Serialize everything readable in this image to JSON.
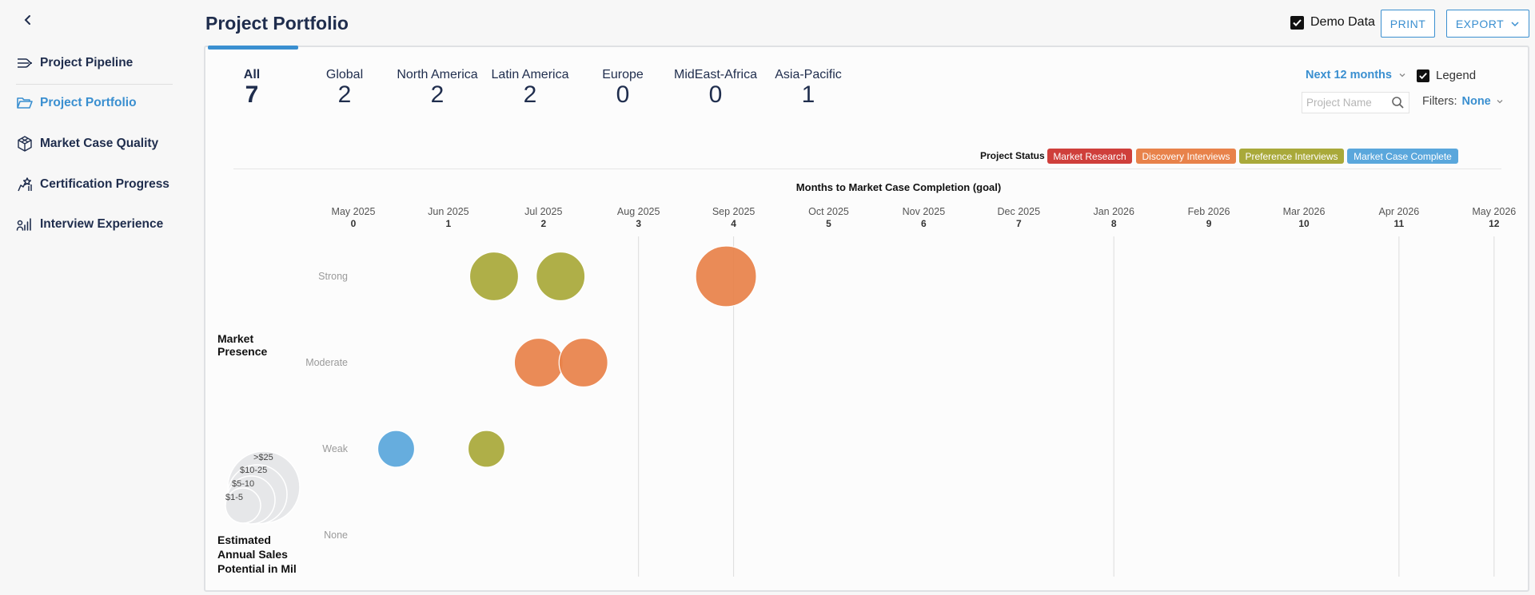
{
  "sidebar": {
    "back_icon": "chevron-left-icon",
    "items": [
      {
        "label": "Project Pipeline",
        "icon": "pipeline-icon",
        "active": false
      },
      {
        "label": "Project Portfolio",
        "icon": "folder-open-icon",
        "active": true
      },
      {
        "label": "Market Case Quality",
        "icon": "cube-icon",
        "active": false
      },
      {
        "label": "Certification Progress",
        "icon": "certification-icon",
        "active": false
      },
      {
        "label": "Interview Experience",
        "icon": "interview-bars-icon",
        "active": false
      }
    ]
  },
  "header": {
    "title": "Project Portfolio",
    "demo_data_label": "Demo Data",
    "demo_data_checked": true,
    "print_label": "PRINT",
    "export_label": "EXPORT"
  },
  "tabs": [
    {
      "label": "All",
      "count": "7",
      "active": true
    },
    {
      "label": "Global",
      "count": "2",
      "active": false
    },
    {
      "label": "North America",
      "count": "2",
      "active": false
    },
    {
      "label": "Latin America",
      "count": "2",
      "active": false
    },
    {
      "label": "Europe",
      "count": "0",
      "active": false
    },
    {
      "label": "MidEast-Africa",
      "count": "0",
      "active": false
    },
    {
      "label": "Asia-Pacific",
      "count": "1",
      "active": false
    }
  ],
  "controls": {
    "time_range": "Next 12 months",
    "legend_label": "Legend",
    "legend_checked": true,
    "search_placeholder": "Project Name",
    "filters_label": "Filters:",
    "filters_value": "None"
  },
  "status_legend": {
    "title": "Project Status",
    "items": [
      {
        "label": "Market Research",
        "color": "#cf3f3b"
      },
      {
        "label": "Discovery Interviews",
        "color": "#e8824a"
      },
      {
        "label": "Preference Interviews",
        "color": "#a9a93a"
      },
      {
        "label": "Market Case Complete",
        "color": "#5aa7dc"
      }
    ]
  },
  "chart_data": {
    "type": "scatter",
    "title": "Months to Market Case Completion (goal)",
    "x_ticks": [
      {
        "month": "May 2025",
        "num": "0"
      },
      {
        "month": "Jun 2025",
        "num": "1"
      },
      {
        "month": "Jul 2025",
        "num": "2"
      },
      {
        "month": "Aug 2025",
        "num": "3"
      },
      {
        "month": "Sep 2025",
        "num": "4"
      },
      {
        "month": "Oct 2025",
        "num": "5"
      },
      {
        "month": "Nov 2025",
        "num": "6"
      },
      {
        "month": "Dec 2025",
        "num": "7"
      },
      {
        "month": "Jan 2026",
        "num": "8"
      },
      {
        "month": "Feb 2026",
        "num": "9"
      },
      {
        "month": "Mar 2026",
        "num": "10"
      },
      {
        "month": "Apr 2026",
        "num": "11"
      },
      {
        "month": "May 2026",
        "num": "12"
      }
    ],
    "xlim": [
      0,
      12
    ],
    "y_categories": [
      "Strong",
      "Moderate",
      "Weak",
      "None"
    ],
    "ylabel": "Market Presence",
    "size_legend_title": "Estimated Annual Sales Potential in Mil",
    "size_legend": [
      ">$25",
      "$10-25",
      "$5-10",
      "$1-5"
    ],
    "points": [
      {
        "x": 1.48,
        "y": "Strong",
        "size": "$10-25",
        "status": "Preference Interviews"
      },
      {
        "x": 2.18,
        "y": "Strong",
        "size": "$10-25",
        "status": "Preference Interviews"
      },
      {
        "x": 3.92,
        "y": "Strong",
        "size": ">$25",
        "status": "Discovery Interviews"
      },
      {
        "x": 1.95,
        "y": "Moderate",
        "size": "$10-25",
        "status": "Discovery Interviews"
      },
      {
        "x": 2.42,
        "y": "Moderate",
        "size": "$10-25",
        "status": "Discovery Interviews"
      },
      {
        "x": 0.45,
        "y": "Weak",
        "size": "$5-10",
        "status": "Market Case Complete"
      },
      {
        "x": 1.4,
        "y": "Weak",
        "size": "$5-10",
        "status": "Preference Interviews"
      }
    ]
  }
}
